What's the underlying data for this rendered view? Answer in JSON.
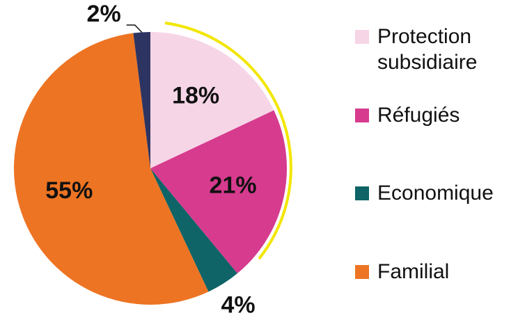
{
  "chart_data": {
    "type": "pie",
    "categories": [
      "Protection subsidiaire",
      "Réfugiés",
      "Economique",
      "Familial",
      null
    ],
    "values": [
      18,
      21,
      4,
      55,
      2
    ],
    "value_labels": [
      "18%",
      "21%",
      "4%",
      "55%",
      "2%"
    ],
    "colors": [
      "#f6d5e6",
      "#d63b8e",
      "#0e6466",
      "#ed7423",
      "#2e3461"
    ]
  }
}
